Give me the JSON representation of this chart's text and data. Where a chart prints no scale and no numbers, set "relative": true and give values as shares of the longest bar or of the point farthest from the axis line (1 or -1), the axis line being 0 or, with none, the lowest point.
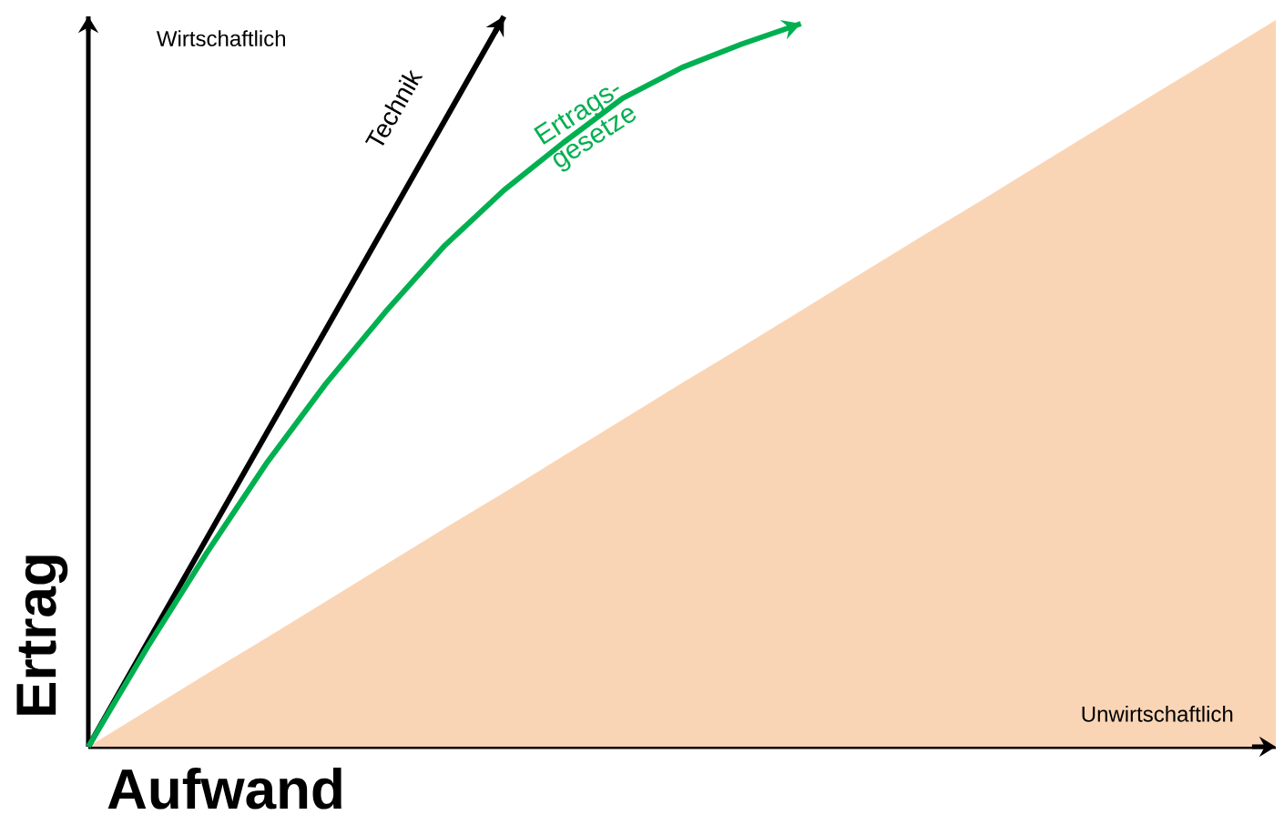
{
  "chart_data": {
    "type": "line",
    "relative": true,
    "xlabel": "Aufwand",
    "ylabel": "Ertrag",
    "marker": "none",
    "line_style": "solid",
    "annotations": [
      "Wirtschaftlich",
      "Unwirtschaftlich"
    ],
    "categories": [
      null,
      null,
      null,
      null,
      null,
      null,
      null,
      null,
      null,
      null,
      null,
      null,
      null,
      null,
      null,
      null,
      null,
      null,
      null,
      null,
      null
    ],
    "series": [
      {
        "type": "area",
        "color": "#fad5b5",
        "values": [
          0,
          0.05,
          0.1,
          0.149,
          0.199,
          0.249,
          0.299,
          0.348,
          0.398,
          0.448,
          0.498,
          0.547,
          0.597,
          0.647,
          0.697,
          0.746,
          0.796,
          0.846,
          0.896,
          0.945,
          0.995
        ]
      },
      {
        "name": "Technik",
        "color": "#000000",
        "values": [
          0,
          0.143,
          0.286,
          0.429,
          0.571,
          0.714,
          0.857,
          1.0,
          null,
          null,
          null,
          null,
          null,
          null,
          null,
          null,
          null,
          null,
          null,
          null,
          null
        ]
      },
      {
        "name": "Ertrags-gesetze",
        "color": "#00b050",
        "values": [
          0,
          0.137,
          0.266,
          0.388,
          0.497,
          0.595,
          0.686,
          0.762,
          0.827,
          0.888,
          0.93,
          0.962,
          0.99,
          null,
          null,
          null,
          null,
          null,
          null,
          null,
          null
        ]
      }
    ]
  }
}
